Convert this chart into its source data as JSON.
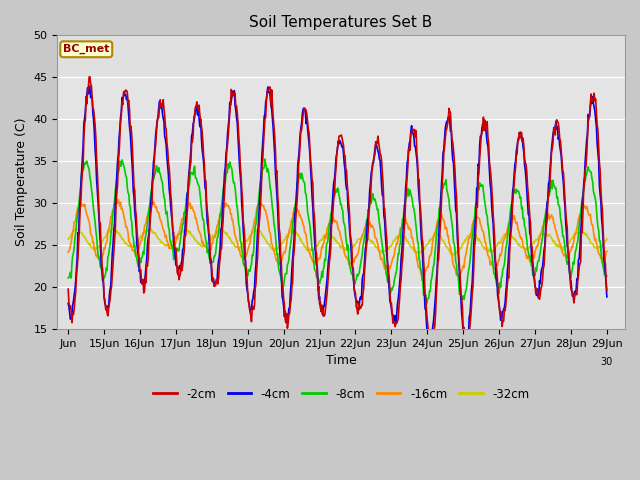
{
  "title": "Soil Temperatures Set B",
  "xlabel": "Time",
  "ylabel": "Soil Temperature (C)",
  "ylim": [
    15,
    50
  ],
  "annotation": "BC_met",
  "series": {
    "-2cm": {
      "color": "#cc0000",
      "lw": 1.2
    },
    "-4cm": {
      "color": "#0000ee",
      "lw": 1.2
    },
    "-8cm": {
      "color": "#00cc00",
      "lw": 1.2
    },
    "-16cm": {
      "color": "#ff8800",
      "lw": 1.2
    },
    "-32cm": {
      "color": "#cccc00",
      "lw": 1.2
    }
  },
  "ytick_values": [
    15,
    20,
    25,
    30,
    35,
    40,
    45,
    50
  ],
  "xtick_positions": [
    0,
    1,
    2,
    3,
    4,
    5,
    6,
    7,
    8,
    9,
    10,
    11,
    12,
    13,
    14,
    15
  ],
  "xtick_labels": [
    "Jun",
    "15Jun",
    "16Jun",
    "17Jun",
    "18Jun",
    "19Jun",
    "20Jun",
    "21Jun",
    "22Jun",
    "23Jun",
    "24Jun",
    "25Jun",
    "26Jun",
    "27Jun",
    "28Jun",
    "29Jun"
  ]
}
